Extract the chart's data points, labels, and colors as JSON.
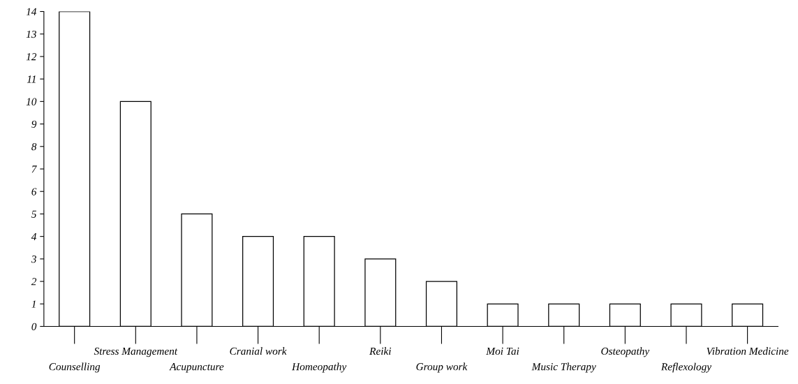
{
  "chart_data": {
    "type": "bar",
    "categories": [
      "Counselling",
      "Stress Management",
      "Acupuncture",
      "Cranial work",
      "Homeopathy",
      "Reiki",
      "Group work",
      "Moi Tai",
      "Music Therapy",
      "Osteopathy",
      "Reflexology",
      "Vibration Medicine"
    ],
    "values": [
      14,
      10,
      5,
      4,
      4,
      3,
      2,
      1,
      1,
      1,
      1,
      1
    ],
    "color": "#ffffff",
    "ylim": [
      0,
      14
    ],
    "yticks": [
      0,
      1,
      2,
      3,
      4,
      5,
      6,
      7,
      8,
      9,
      10,
      11,
      12,
      13,
      14
    ],
    "grid": false,
    "legend": false
  }
}
